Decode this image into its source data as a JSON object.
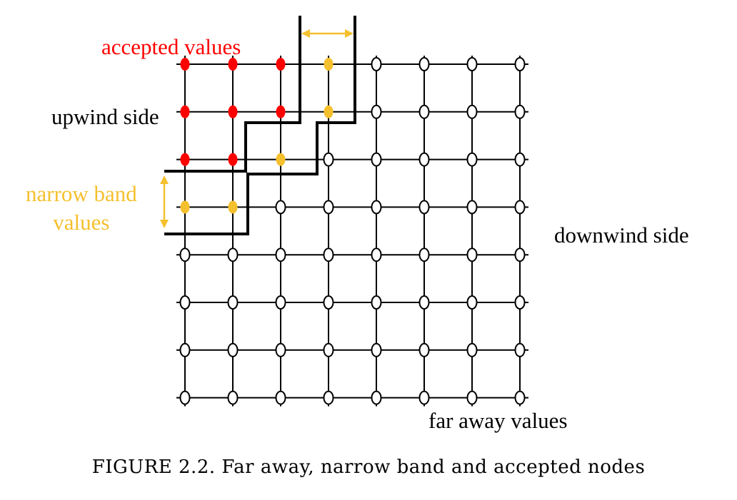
{
  "labels": {
    "accepted": "accepted values",
    "upwind": "upwind side",
    "narrow_band_line1": "narrow band",
    "narrow_band_line2": "values",
    "downwind": "downwind side",
    "far_away": "far away values"
  },
  "caption": "FIGURE 2.2. Far away, narrow band and accepted nodes",
  "grid": {
    "rows": 8,
    "cols": 8,
    "node_states": [
      [
        "accepted",
        "accepted",
        "accepted",
        "narrow",
        "far",
        "far",
        "far",
        "far"
      ],
      [
        "accepted",
        "accepted",
        "accepted",
        "narrow",
        "far",
        "far",
        "far",
        "far"
      ],
      [
        "accepted",
        "accepted",
        "narrow",
        "far",
        "far",
        "far",
        "far",
        "far"
      ],
      [
        "narrow",
        "narrow",
        "far",
        "far",
        "far",
        "far",
        "far",
        "far"
      ],
      [
        "far",
        "far",
        "far",
        "far",
        "far",
        "far",
        "far",
        "far"
      ],
      [
        "far",
        "far",
        "far",
        "far",
        "far",
        "far",
        "far",
        "far"
      ],
      [
        "far",
        "far",
        "far",
        "far",
        "far",
        "far",
        "far",
        "far"
      ],
      [
        "far",
        "far",
        "far",
        "far",
        "far",
        "far",
        "far",
        "far"
      ]
    ]
  },
  "colors": {
    "accepted": "#ff0000",
    "narrow": "#f5c02e",
    "far_fill": "#ffffff",
    "line": "#000000",
    "accepted_text": "#ff0000",
    "narrow_text": "#f5c02e",
    "text": "#000000"
  }
}
